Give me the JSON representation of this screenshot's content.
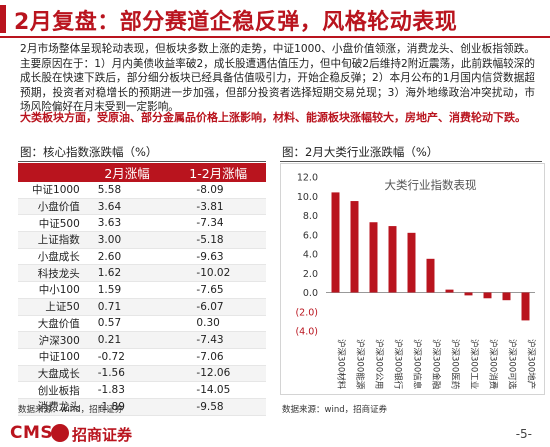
{
  "page": {
    "title": "2月复盘：部分赛道企稳反弹，风格轮动表现",
    "summary": "2月市场整体呈现轮动表现，但板块多数上涨的走势，中证1000、小盘价值领涨，消费龙头、创业板指领跌。主要原因在于：1）月内美债收益率破2，成长股遭遇估值压力，但中旬破2后维持2附近震荡，此前跌幅较深的成长股在快速下跌后，部分细分板块已经具备估值吸引力，开始企稳反弹；2）本月公布的1月国内信贷数据超预期，投资者对稳增长的预期进一步加强，但部分投资者选择短期交易兑现；3）海外地缘政治冲突扰动，市场风险偏好在月末受到一定影响。",
    "highlight": "大类板块方面，受原油、部分金属品价格上涨影响，材料、能源板块涨幅较大，房地产、消费轮动下跌。",
    "page_number": "-5-"
  },
  "left_panel": {
    "title": "图：核心指数涨跌幅（%）",
    "col1": "2月涨幅",
    "col2": "1-2月涨幅",
    "rows": [
      {
        "name": "中证1000",
        "feb": "5.58",
        "ytd": "-8.09"
      },
      {
        "name": "小盘价值",
        "feb": "3.64",
        "ytd": "-3.81"
      },
      {
        "name": "中证500",
        "feb": "3.63",
        "ytd": "-7.34"
      },
      {
        "name": "上证指数",
        "feb": "3.00",
        "ytd": "-5.18"
      },
      {
        "name": "小盘成长",
        "feb": "2.60",
        "ytd": "-9.63"
      },
      {
        "name": "科技龙头",
        "feb": "1.62",
        "ytd": "-10.02"
      },
      {
        "name": "中小100",
        "feb": "1.59",
        "ytd": "-7.65"
      },
      {
        "name": "上证50",
        "feb": "0.71",
        "ytd": "-6.07"
      },
      {
        "name": "大盘价值",
        "feb": "0.57",
        "ytd": "0.30"
      },
      {
        "name": "沪深300",
        "feb": "0.21",
        "ytd": "-7.43"
      },
      {
        "name": "中证100",
        "feb": "-0.72",
        "ytd": "-7.06"
      },
      {
        "name": "大盘成长",
        "feb": "-1.56",
        "ytd": "-12.06"
      },
      {
        "name": "创业板指",
        "feb": "-1.83",
        "ytd": "-14.05"
      },
      {
        "name": "消费龙头",
        "feb": "-1.89",
        "ytd": "-9.58"
      }
    ],
    "source": "数据来源：wind，招商证券"
  },
  "right_panel": {
    "title": "图：2月大类行业涨跌幅（%）",
    "source": "数据来源：wind，招商证券"
  },
  "chart_data": {
    "type": "bar",
    "title": "大类行业指数表现",
    "categories": [
      "沪深300材料",
      "沪深300能源",
      "沪深300公用",
      "沪深300银行",
      "沪深300信息",
      "沪深300金融",
      "沪深300医药",
      "沪深300工业",
      "沪深300消费",
      "沪深300可选",
      "沪深300地产"
    ],
    "values": [
      10.4,
      9.5,
      7.3,
      6.9,
      6.2,
      3.5,
      0.3,
      -0.3,
      -0.6,
      -0.8,
      -2.9
    ],
    "ylim": [
      -4,
      12
    ],
    "yticks": [
      "(4.0)",
      "(2.0)",
      "0.0",
      "2.0",
      "4.0",
      "6.0",
      "8.0",
      "10.0",
      "12.0"
    ],
    "colors": {
      "bar": "#b9141e",
      "text": "#333333"
    }
  },
  "footer": {
    "brand_latin": "CMS",
    "brand_cn": "招商证券"
  }
}
